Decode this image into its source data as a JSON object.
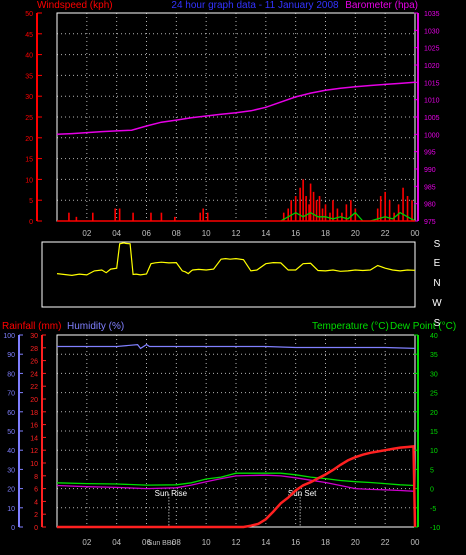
{
  "header": {
    "left_label": "Windspeed (kph)",
    "center_label": "24 hour graph data - 11 January 2008",
    "right_label": "Barometer (hpa)"
  },
  "colors": {
    "background": "#000000",
    "wind": "#ff0000",
    "gust": "#00cc00",
    "barometer": "#e600e6",
    "direction": "#ffff00",
    "frame": "#ffffff",
    "grid": "#ffffff",
    "humidity_axis": "#7f7fff",
    "rainfall": "#ff2020",
    "humidity": "#8080ff",
    "temperature": "#00dd00",
    "dewpoint": "#cc00cc",
    "tick_text": "#c0c0c0",
    "center_label": "#3333ff"
  },
  "x_axis": {
    "ticks": [
      "02",
      "04",
      "06",
      "08",
      "10",
      "12",
      "14",
      "16",
      "18",
      "20",
      "22",
      "00"
    ]
  },
  "direction_labels": [
    "S",
    "E",
    "N",
    "W",
    "S"
  ],
  "bottom_header": {
    "rainfall_label": "Rainfall (mm)",
    "humidity_label": "Humidity (%)",
    "temperature_label": "Temperature (°C)",
    "dewpoint_label": "Dew Point (°C)"
  },
  "annotations": {
    "sun_rise": "Sun Rise",
    "sun_set": "Sun Set",
    "sun_bbc": "Sun BBc"
  },
  "chart_data": [
    {
      "type": "line",
      "x_unit": "hour",
      "x_range": [
        0,
        24
      ],
      "y_left": {
        "label": "Windspeed (kph)",
        "ylim": [
          0,
          50
        ],
        "ticks": [
          0,
          5,
          10,
          15,
          20,
          25,
          30,
          35,
          40,
          45,
          50
        ]
      },
      "y_right": {
        "label": "Barometer (hpa)",
        "ylim": [
          975,
          1035
        ],
        "ticks": [
          975,
          980,
          985,
          990,
          995,
          1000,
          1005,
          1010,
          1015,
          1020,
          1025,
          1030,
          1035
        ]
      },
      "grid": true,
      "series": [
        {
          "name": "Barometer (hpa)",
          "axis": "right",
          "x": [
            0,
            1,
            2,
            3,
            4,
            5,
            6,
            7,
            8,
            9,
            10,
            11,
            12,
            13,
            14,
            15,
            16,
            17,
            18,
            19,
            20,
            21,
            22,
            23,
            24
          ],
          "values": [
            1000,
            1000.2,
            1000.5,
            1000.8,
            1001,
            1001.2,
            1002.4,
            1003.5,
            1004.1,
            1004.8,
            1005.3,
            1005.8,
            1006.2,
            1006.8,
            1007.8,
            1009.3,
            1010.8,
            1011.9,
            1012.7,
            1013.3,
            1013.7,
            1014.1,
            1014.4,
            1014.7,
            1015
          ]
        },
        {
          "name": "Windspeed (kph)",
          "axis": "left",
          "kind": "bars",
          "x": [
            0.8,
            1.3,
            2.4,
            3.9,
            4.2,
            5.1,
            6.3,
            7.0,
            7.9,
            9.6,
            9.8,
            10.1,
            15.2,
            15.5,
            15.7,
            16.0,
            16.3,
            16.5,
            16.7,
            16.9,
            17.0,
            17.2,
            17.4,
            17.6,
            17.8,
            18.0,
            18.3,
            18.5,
            18.8,
            19.1,
            19.4,
            19.7,
            20.0,
            21.5,
            21.7,
            22.0,
            22.3,
            22.6,
            22.9,
            23.2,
            23.5,
            23.8
          ],
          "values": [
            2,
            1,
            2,
            3,
            3,
            2,
            2,
            2,
            1,
            2,
            3,
            2,
            2,
            3,
            5,
            6,
            8,
            10,
            6,
            4,
            9,
            7,
            5,
            6,
            3,
            4,
            2,
            5,
            3,
            2,
            4,
            5,
            3,
            3,
            6,
            7,
            5,
            2,
            4,
            8,
            6,
            5
          ]
        },
        {
          "name": "Gust",
          "axis": "left",
          "x": [
            15.0,
            15.5,
            16.0,
            16.5,
            17.0,
            17.5,
            18.0,
            18.5,
            19.0,
            19.5,
            20.0,
            20.5,
            21.0,
            21.5,
            22.0,
            22.5,
            23.0,
            23.5,
            24.0
          ],
          "values": [
            0,
            1,
            2,
            1,
            2,
            1,
            1,
            0.5,
            1,
            0.5,
            2,
            0,
            0,
            0.5,
            1,
            0.5,
            2,
            1,
            0
          ]
        }
      ]
    },
    {
      "type": "line",
      "x_unit": "hour",
      "x_range": [
        0,
        24
      ],
      "y_labels": [
        "S",
        "E",
        "N",
        "W",
        "S"
      ],
      "series": [
        {
          "name": "Wind direction (deg)",
          "x": [
            0,
            0.5,
            1,
            1.5,
            2,
            2.5,
            3,
            3.3,
            3.6,
            4,
            4.2,
            4.5,
            4.6,
            4.9,
            5.1,
            5.3,
            5.6,
            6,
            6.3,
            6.6,
            7,
            7.5,
            8,
            8.4,
            8.6,
            8.8,
            9,
            9.1,
            9.5,
            10,
            10.5,
            11,
            11.3,
            11.6,
            12,
            12.5,
            13,
            13.4,
            14,
            14.5,
            15,
            15.5,
            16,
            16.5,
            17,
            17.5,
            18,
            18.5,
            19,
            19.5,
            20,
            20.5,
            21,
            21.5,
            22,
            22.5,
            23,
            23.5,
            24
          ],
          "values": [
            185,
            180,
            175,
            182,
            178,
            200,
            205,
            190,
            210,
            215,
            350,
            355,
            352,
            350,
            180,
            182,
            178,
            183,
            240,
            245,
            248,
            244,
            246,
            200,
            195,
            185,
            200,
            205,
            208,
            205,
            210,
            265,
            268,
            265,
            268,
            262,
            200,
            205,
            240,
            246,
            244,
            205,
            205,
            240,
            242,
            202,
            200,
            205,
            198,
            200,
            205,
            202,
            205,
            230,
            215,
            205,
            200,
            205,
            203
          ]
        }
      ]
    },
    {
      "type": "line",
      "x_unit": "hour",
      "x_range": [
        0,
        24
      ],
      "y_left_humidity": {
        "label": "Humidity (%)",
        "ylim": [
          0,
          100
        ],
        "ticks": [
          0,
          10,
          20,
          30,
          40,
          50,
          60,
          70,
          80,
          90,
          100
        ]
      },
      "y_left_rain": {
        "label": "Rainfall (mm)",
        "ylim": [
          0,
          30
        ],
        "ticks": [
          0,
          2,
          4,
          6,
          8,
          10,
          12,
          14,
          16,
          18,
          20,
          22,
          24,
          26,
          28,
          30
        ]
      },
      "y_right": {
        "label": "Temperature (°C)/Dew Point (°C)",
        "ylim": [
          -10,
          40
        ],
        "ticks": [
          -10,
          -5,
          0,
          5,
          10,
          15,
          20,
          25,
          30,
          35,
          40
        ]
      },
      "grid": true,
      "series": [
        {
          "name": "Humidity (%)",
          "axis": "humidity",
          "x": [
            0,
            2,
            4,
            5.4,
            5.6,
            6,
            6.2,
            8,
            10,
            12,
            14,
            16,
            18,
            20,
            22,
            24
          ],
          "values": [
            94,
            94,
            94,
            95,
            93,
            95,
            94,
            94,
            94,
            94,
            94,
            93.5,
            93.5,
            93.5,
            93.5,
            93
          ]
        },
        {
          "name": "Rainfall (mm)",
          "axis": "rain",
          "x": [
            0,
            12,
            12.5,
            13,
            13.5,
            14,
            14.5,
            15,
            15.5,
            16,
            16.5,
            17,
            17.5,
            18,
            18.5,
            19,
            19.5,
            20,
            20.5,
            21,
            21.5,
            22,
            22.5,
            23,
            23.5,
            23.9,
            24
          ],
          "values": [
            0,
            0,
            0,
            0.2,
            0.5,
            1.2,
            2.4,
            3.7,
            4.6,
            5.7,
            6.5,
            7.0,
            7.6,
            8.2,
            8.9,
            9.7,
            10.4,
            10.9,
            11.3,
            11.6,
            11.8,
            12.0,
            12.2,
            12.4,
            12.5,
            12.6,
            0
          ]
        },
        {
          "name": "Temperature (°C)",
          "axis": "right",
          "x": [
            0,
            2,
            4,
            6,
            8,
            9,
            10,
            11,
            12,
            13,
            14,
            15,
            16,
            17,
            18,
            19,
            20,
            21,
            22,
            23,
            24
          ],
          "values": [
            1.5,
            1.3,
            1.2,
            0.9,
            1.0,
            1.5,
            2.5,
            3.0,
            4.0,
            4.0,
            4.0,
            4.0,
            3.6,
            3.0,
            2.6,
            2.1,
            1.8,
            1.6,
            1.3,
            1.0,
            0.8
          ]
        },
        {
          "name": "Dew Point (°C)",
          "axis": "right",
          "x": [
            0,
            2,
            4,
            6,
            8,
            9,
            10,
            11,
            12,
            13,
            14,
            15,
            16,
            17,
            18,
            19,
            20,
            21,
            22,
            23,
            24
          ],
          "values": [
            0.8,
            0.5,
            0.3,
            0.0,
            0.2,
            0.9,
            1.8,
            2.6,
            3.3,
            3.4,
            3.5,
            3.3,
            2.8,
            2.2,
            1.6,
            0.8,
            0.0,
            -0.2,
            -0.3,
            -0.5,
            -0.7
          ]
        }
      ],
      "markers": [
        {
          "label": "Sun Rise",
          "x": 7.5
        },
        {
          "label": "Sun Set",
          "x": 16.3
        }
      ]
    }
  ]
}
